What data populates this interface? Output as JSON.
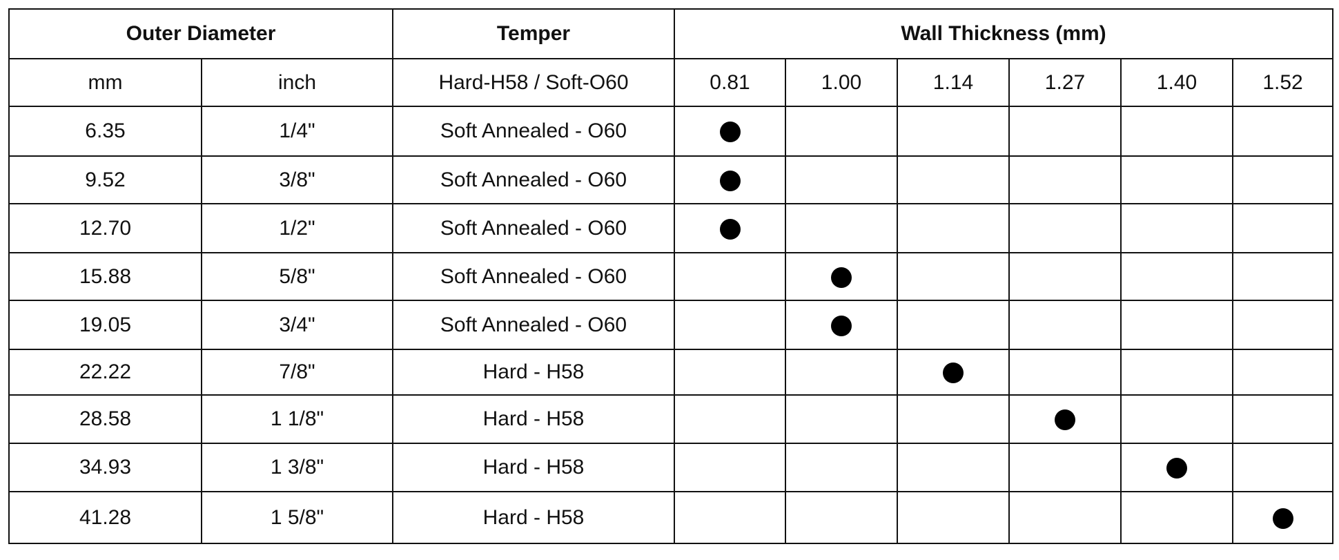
{
  "header": {
    "outer_diameter": "Outer Diameter",
    "temper": "Temper",
    "wall_thickness": "Wall Thickness (mm)"
  },
  "subheader": [
    "mm",
    "inch",
    "Hard-H58 / Soft-O60",
    "0.81",
    "1.00",
    "1.14",
    "1.27",
    "1.40",
    "1.52"
  ],
  "rows": [
    {
      "mm": "6.35",
      "inch": "1/4\"",
      "temper": "Soft Annealed - O60",
      "wall": [
        1,
        0,
        0,
        0,
        0,
        0
      ]
    },
    {
      "mm": "9.52",
      "inch": "3/8\"",
      "temper": "Soft Annealed - O60",
      "wall": [
        1,
        0,
        0,
        0,
        0,
        0
      ]
    },
    {
      "mm": "12.70",
      "inch": "1/2\"",
      "temper": "Soft Annealed - O60",
      "wall": [
        1,
        0,
        0,
        0,
        0,
        0
      ]
    },
    {
      "mm": "15.88",
      "inch": "5/8\"",
      "temper": "Soft Annealed - O60",
      "wall": [
        0,
        1,
        0,
        0,
        0,
        0
      ]
    },
    {
      "mm": "19.05",
      "inch": "3/4\"",
      "temper": "Soft Annealed - O60",
      "wall": [
        0,
        1,
        0,
        0,
        0,
        0
      ]
    },
    {
      "mm": "22.22",
      "inch": "7/8\"",
      "temper": "Hard - H58",
      "wall": [
        0,
        0,
        1,
        0,
        0,
        0
      ]
    },
    {
      "mm": "28.58",
      "inch": "1 1/8\"",
      "temper": "Hard - H58",
      "wall": [
        0,
        0,
        0,
        1,
        0,
        0
      ]
    },
    {
      "mm": "34.93",
      "inch": "1 3/8\"",
      "temper": "Hard - H58",
      "wall": [
        0,
        0,
        0,
        0,
        1,
        0
      ]
    },
    {
      "mm": "41.28",
      "inch": "1 5/8\"",
      "temper": "Hard - H58",
      "wall": [
        0,
        0,
        0,
        0,
        0,
        1
      ]
    }
  ]
}
